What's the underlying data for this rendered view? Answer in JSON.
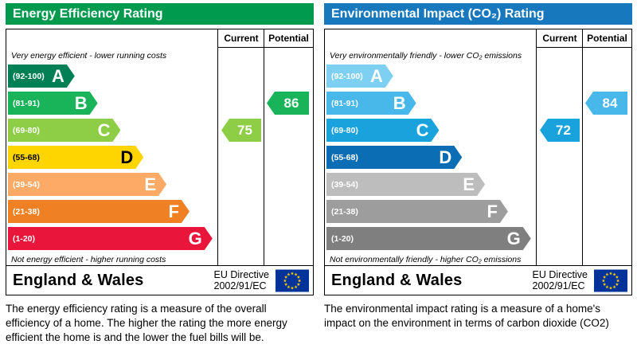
{
  "page": {
    "background": "#ffffff"
  },
  "chart_data": [
    {
      "type": "bar",
      "id": "energy-efficiency",
      "title": "Energy Efficiency Rating",
      "header_color": "#009a4e",
      "columns": {
        "current": "Current",
        "potential": "Potential"
      },
      "top_note": "Very energy efficient - lower running costs",
      "bottom_note": "Not energy efficient - higher running costs",
      "bands": [
        {
          "range": "(92-100)",
          "letter": "A",
          "color": "#008054",
          "text_color": "#ffffff",
          "width_pct": 32
        },
        {
          "range": "(81-91)",
          "letter": "B",
          "color": "#19b459",
          "text_color": "#ffffff",
          "width_pct": 43
        },
        {
          "range": "(69-80)",
          "letter": "C",
          "color": "#8dce46",
          "text_color": "#ffffff",
          "width_pct": 54
        },
        {
          "range": "(55-68)",
          "letter": "D",
          "color": "#ffd500",
          "text_color": "#000000",
          "width_pct": 65
        },
        {
          "range": "(39-54)",
          "letter": "E",
          "color": "#fcaa65",
          "text_color": "#ffffff",
          "width_pct": 76
        },
        {
          "range": "(21-38)",
          "letter": "F",
          "color": "#ef8023",
          "text_color": "#ffffff",
          "width_pct": 87
        },
        {
          "range": "(1-20)",
          "letter": "G",
          "color": "#e9153b",
          "text_color": "#ffffff",
          "width_pct": 98
        }
      ],
      "current": {
        "label": "Current",
        "value": 75,
        "band": "C",
        "band_index": 2,
        "color": "#8dce46"
      },
      "potential": {
        "label": "Potential",
        "value": 86,
        "band": "B",
        "band_index": 1,
        "color": "#19b459"
      },
      "footer": {
        "region": "England & Wales",
        "directive_line1": "EU Directive",
        "directive_line2": "2002/91/EC",
        "flag": "eu-flag"
      },
      "description": "The energy efficiency rating is a measure of the overall efficiency of a home.  The higher the rating the more energy efficient the home is and the lower the fuel bills will be."
    },
    {
      "type": "bar",
      "id": "environmental-impact",
      "title": "Environmental Impact (CO₂) Rating",
      "header_color": "#1778be",
      "columns": {
        "current": "Current",
        "potential": "Potential"
      },
      "top_note": "Very environmentally friendly - lower CO₂ emissions",
      "bottom_note": "Not environmentally friendly - higher CO₂ emissions",
      "bands": [
        {
          "range": "(92-100)",
          "letter": "A",
          "color": "#7ed0f2",
          "text_color": "#ffffff",
          "width_pct": 32
        },
        {
          "range": "(81-91)",
          "letter": "B",
          "color": "#48b7ea",
          "text_color": "#ffffff",
          "width_pct": 43
        },
        {
          "range": "(69-80)",
          "letter": "C",
          "color": "#1aa2dc",
          "text_color": "#ffffff",
          "width_pct": 54
        },
        {
          "range": "(55-68)",
          "letter": "D",
          "color": "#0b6eb5",
          "text_color": "#ffffff",
          "width_pct": 65
        },
        {
          "range": "(39-54)",
          "letter": "E",
          "color": "#bdbdbd",
          "text_color": "#ffffff",
          "width_pct": 76
        },
        {
          "range": "(21-38)",
          "letter": "F",
          "color": "#9d9d9d",
          "text_color": "#ffffff",
          "width_pct": 87
        },
        {
          "range": "(1-20)",
          "letter": "G",
          "color": "#7f7f7f",
          "text_color": "#ffffff",
          "width_pct": 98
        }
      ],
      "current": {
        "label": "Current",
        "value": 72,
        "band": "C",
        "band_index": 2,
        "color": "#1aa2dc"
      },
      "potential": {
        "label": "Potential",
        "value": 84,
        "band": "B",
        "band_index": 1,
        "color": "#48b7ea"
      },
      "footer": {
        "region": "England & Wales",
        "directive_line1": "EU Directive",
        "directive_line2": "2002/91/EC",
        "flag": "eu-flag"
      },
      "description": "The environmental impact rating is a measure of a home's impact on the environment in terms of carbon dioxide (CO2)"
    }
  ]
}
